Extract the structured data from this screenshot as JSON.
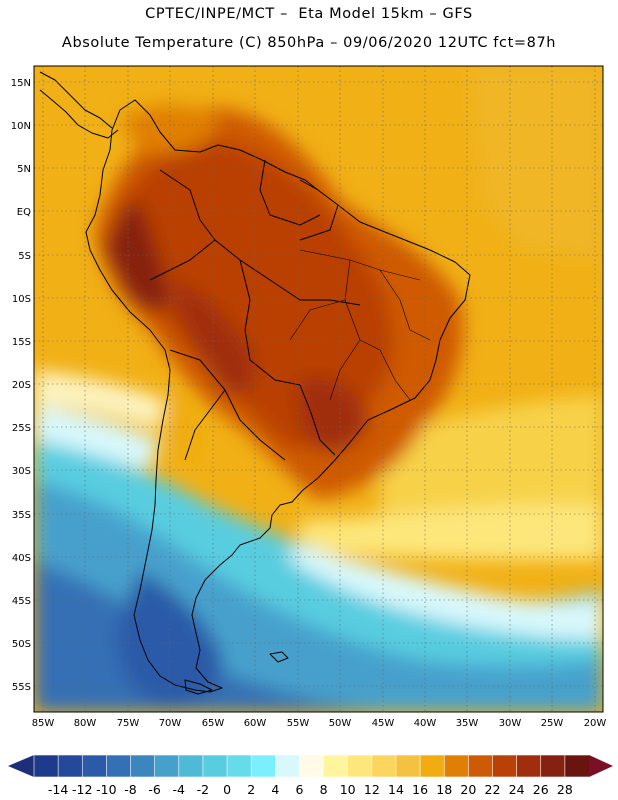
{
  "header": {
    "line1": "CPTEC/INPE/MCT –  Eta Model 15km – GFS",
    "line2": "Absolute Temperature (C) 850hPa – 09/06/2020 12UTC fct=87h"
  },
  "map": {
    "lat_labels": [
      "15N",
      "10N",
      "5N",
      "EQ",
      "5S",
      "10S",
      "15S",
      "20S",
      "25S",
      "30S",
      "35S",
      "40S",
      "45S",
      "50S",
      "55S"
    ],
    "lon_labels": [
      "85W",
      "80W",
      "75W",
      "70W",
      "65W",
      "60W",
      "55W",
      "50W",
      "45W",
      "40W",
      "35W",
      "30W",
      "25W",
      "20W"
    ],
    "lat_range": [
      -58.5,
      16.5
    ],
    "lon_range": [
      -86,
      -19
    ]
  },
  "colorbar": {
    "labels": [
      "-14",
      "-12",
      "-10",
      "-8",
      "-6",
      "-4",
      "-2",
      "0",
      "2",
      "4",
      "6",
      "8",
      "10",
      "12",
      "14",
      "16",
      "18",
      "20",
      "22",
      "24",
      "26",
      "28"
    ],
    "colors": [
      "#1e3a8a",
      "#24489a",
      "#2c5aa8",
      "#3470b5",
      "#3c86c0",
      "#46a0cc",
      "#4fbad6",
      "#59cde0",
      "#66dcea",
      "#7af0ff",
      "#d8f8fc",
      "#fffbe6",
      "#fff59e",
      "#fde77c",
      "#fbd55e",
      "#f5c140",
      "#f0ac10",
      "#e07f05",
      "#cf5a06",
      "#b94006",
      "#a02d0c",
      "#862010",
      "#6a1410"
    ],
    "low_arrow_color": "#1e2f7a",
    "high_arrow_color": "#7a0f26"
  }
}
